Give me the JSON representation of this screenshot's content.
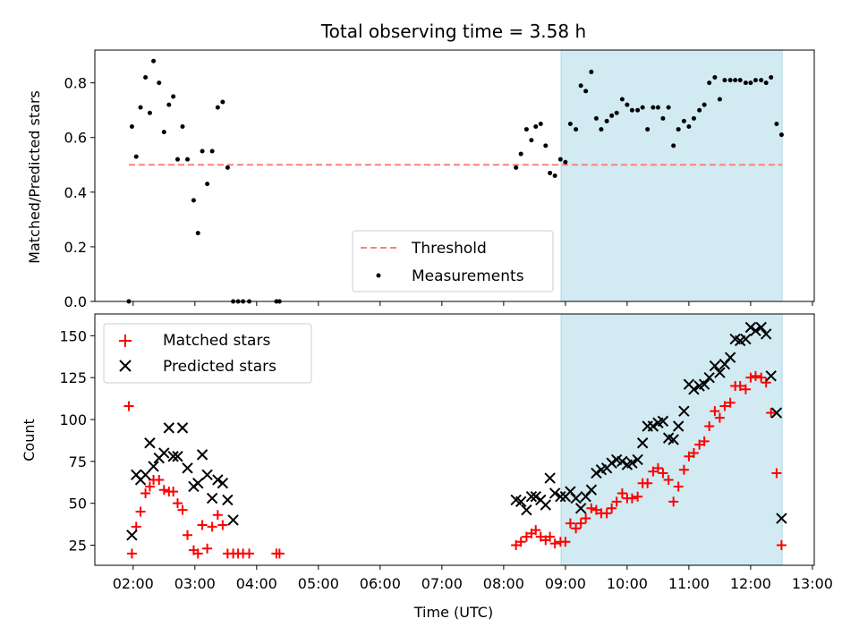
{
  "title": "Total observing time = 3.58 h",
  "colors": {
    "shade": "#add8e6",
    "threshold": "#ff7f7f",
    "matched": "#ff0000",
    "predicted": "#000000",
    "measurements": "#000000"
  },
  "chart_data": [
    {
      "type": "scatter",
      "ylabel": "Matched/Predicted stars",
      "xlim": [
        1.38,
        13.03
      ],
      "ylim": [
        0,
        0.92
      ],
      "yticks": [
        0.0,
        0.2,
        0.4,
        0.6,
        0.8
      ],
      "ytick_labels": [
        "0.0",
        "0.2",
        "0.4",
        "0.6",
        "0.8"
      ],
      "shaded_span": [
        8.93,
        12.51
      ],
      "threshold": {
        "name": "Threshold",
        "y": 0.5,
        "x_range": [
          1.93,
          12.51
        ]
      },
      "legend": {
        "position": "lower-center",
        "entries": [
          "Threshold",
          "Measurements"
        ]
      },
      "series": [
        {
          "name": "Measurements",
          "points": [
            [
              1.93,
              0.0
            ],
            [
              1.98,
              0.64
            ],
            [
              2.05,
              0.53
            ],
            [
              2.12,
              0.71
            ],
            [
              2.2,
              0.82
            ],
            [
              2.27,
              0.69
            ],
            [
              2.33,
              0.88
            ],
            [
              2.42,
              0.8
            ],
            [
              2.5,
              0.62
            ],
            [
              2.58,
              0.72
            ],
            [
              2.65,
              0.75
            ],
            [
              2.72,
              0.52
            ],
            [
              2.8,
              0.64
            ],
            [
              2.88,
              0.52
            ],
            [
              2.98,
              0.37
            ],
            [
              3.05,
              0.25
            ],
            [
              3.12,
              0.55
            ],
            [
              3.2,
              0.43
            ],
            [
              3.28,
              0.55
            ],
            [
              3.37,
              0.71
            ],
            [
              3.45,
              0.73
            ],
            [
              3.53,
              0.49
            ],
            [
              3.62,
              0.0
            ],
            [
              3.7,
              0.0
            ],
            [
              3.78,
              0.0
            ],
            [
              3.88,
              0.0
            ],
            [
              4.32,
              0.0
            ],
            [
              4.37,
              0.0
            ],
            [
              8.2,
              0.49
            ],
            [
              8.28,
              0.54
            ],
            [
              8.37,
              0.63
            ],
            [
              8.45,
              0.59
            ],
            [
              8.52,
              0.64
            ],
            [
              8.6,
              0.65
            ],
            [
              8.68,
              0.57
            ],
            [
              8.75,
              0.47
            ],
            [
              8.83,
              0.46
            ],
            [
              8.92,
              0.52
            ],
            [
              9.0,
              0.51
            ],
            [
              9.08,
              0.65
            ],
            [
              9.17,
              0.63
            ],
            [
              9.25,
              0.79
            ],
            [
              9.33,
              0.77
            ],
            [
              9.42,
              0.84
            ],
            [
              9.5,
              0.67
            ],
            [
              9.58,
              0.63
            ],
            [
              9.67,
              0.66
            ],
            [
              9.75,
              0.68
            ],
            [
              9.83,
              0.69
            ],
            [
              9.92,
              0.74
            ],
            [
              10.0,
              0.72
            ],
            [
              10.08,
              0.7
            ],
            [
              10.17,
              0.7
            ],
            [
              10.25,
              0.71
            ],
            [
              10.33,
              0.63
            ],
            [
              10.42,
              0.71
            ],
            [
              10.5,
              0.71
            ],
            [
              10.58,
              0.67
            ],
            [
              10.67,
              0.71
            ],
            [
              10.75,
              0.57
            ],
            [
              10.83,
              0.63
            ],
            [
              10.92,
              0.66
            ],
            [
              11.0,
              0.64
            ],
            [
              11.08,
              0.67
            ],
            [
              11.17,
              0.7
            ],
            [
              11.25,
              0.72
            ],
            [
              11.33,
              0.8
            ],
            [
              11.42,
              0.82
            ],
            [
              11.5,
              0.74
            ],
            [
              11.58,
              0.81
            ],
            [
              11.67,
              0.81
            ],
            [
              11.75,
              0.81
            ],
            [
              11.83,
              0.81
            ],
            [
              11.92,
              0.8
            ],
            [
              12.0,
              0.8
            ],
            [
              12.08,
              0.81
            ],
            [
              12.17,
              0.81
            ],
            [
              12.25,
              0.8
            ],
            [
              12.33,
              0.82
            ],
            [
              12.42,
              0.65
            ],
            [
              12.5,
              0.61
            ]
          ]
        }
      ]
    },
    {
      "type": "scatter",
      "xlabel": "Time (UTC)",
      "ylabel": "Count",
      "xlim": [
        1.38,
        13.03
      ],
      "ylim": [
        13,
        163
      ],
      "yticks": [
        25,
        50,
        75,
        100,
        125,
        150
      ],
      "ytick_labels": [
        "25",
        "50",
        "75",
        "100",
        "125",
        "150"
      ],
      "xticks": [
        2,
        3,
        4,
        5,
        6,
        7,
        8,
        9,
        10,
        11,
        12,
        13
      ],
      "xtick_labels": [
        "02:00",
        "03:00",
        "04:00",
        "05:00",
        "06:00",
        "07:00",
        "08:00",
        "09:00",
        "10:00",
        "11:00",
        "12:00",
        "13:00"
      ],
      "shaded_span": [
        8.93,
        12.51
      ],
      "legend": {
        "position": "upper-left",
        "entries": [
          "Matched stars",
          "Predicted stars"
        ]
      },
      "series": [
        {
          "name": "Matched stars",
          "marker": "plus",
          "points": [
            [
              1.93,
              108
            ],
            [
              1.98,
              20
            ],
            [
              2.05,
              36
            ],
            [
              2.12,
              45
            ],
            [
              2.2,
              56
            ],
            [
              2.27,
              60
            ],
            [
              2.33,
              64
            ],
            [
              2.42,
              64
            ],
            [
              2.5,
              58
            ],
            [
              2.58,
              57
            ],
            [
              2.65,
              57
            ],
            [
              2.72,
              50
            ],
            [
              2.8,
              46
            ],
            [
              2.88,
              31
            ],
            [
              2.98,
              22
            ],
            [
              3.05,
              20
            ],
            [
              3.12,
              37
            ],
            [
              3.2,
              23
            ],
            [
              3.28,
              36
            ],
            [
              3.37,
              43
            ],
            [
              3.45,
              37
            ],
            [
              3.53,
              20
            ],
            [
              3.62,
              20
            ],
            [
              3.7,
              20
            ],
            [
              3.78,
              20
            ],
            [
              3.88,
              20
            ],
            [
              4.32,
              20
            ],
            [
              4.37,
              20
            ],
            [
              8.2,
              25
            ],
            [
              8.28,
              27
            ],
            [
              8.37,
              30
            ],
            [
              8.45,
              32
            ],
            [
              8.52,
              34
            ],
            [
              8.6,
              30
            ],
            [
              8.68,
              28
            ],
            [
              8.75,
              30
            ],
            [
              8.83,
              26
            ],
            [
              8.92,
              27
            ],
            [
              9.0,
              27
            ],
            [
              9.08,
              38
            ],
            [
              9.17,
              35
            ],
            [
              9.25,
              38
            ],
            [
              9.33,
              41
            ],
            [
              9.42,
              47
            ],
            [
              9.5,
              46
            ],
            [
              9.58,
              44
            ],
            [
              9.67,
              44
            ],
            [
              9.75,
              47
            ],
            [
              9.83,
              51
            ],
            [
              9.92,
              56
            ],
            [
              10.0,
              53
            ],
            [
              10.08,
              53
            ],
            [
              10.17,
              54
            ],
            [
              10.25,
              62
            ],
            [
              10.33,
              62
            ],
            [
              10.42,
              69
            ],
            [
              10.5,
              71
            ],
            [
              10.58,
              68
            ],
            [
              10.67,
              64
            ],
            [
              10.75,
              51
            ],
            [
              10.83,
              60
            ],
            [
              10.92,
              70
            ],
            [
              11.0,
              78
            ],
            [
              11.08,
              80
            ],
            [
              11.17,
              85
            ],
            [
              11.25,
              87
            ],
            [
              11.33,
              96
            ],
            [
              11.42,
              105
            ],
            [
              11.5,
              101
            ],
            [
              11.58,
              108
            ],
            [
              11.67,
              110
            ],
            [
              11.75,
              120
            ],
            [
              11.83,
              120
            ],
            [
              11.92,
              118
            ],
            [
              12.0,
              125
            ],
            [
              12.08,
              126
            ],
            [
              12.17,
              125
            ],
            [
              12.25,
              122
            ],
            [
              12.33,
              104
            ],
            [
              12.42,
              68
            ],
            [
              12.5,
              25
            ]
          ]
        },
        {
          "name": "Predicted stars",
          "marker": "x",
          "points": [
            [
              1.98,
              31
            ],
            [
              2.05,
              67
            ],
            [
              2.12,
              64
            ],
            [
              2.2,
              67
            ],
            [
              2.27,
              86
            ],
            [
              2.33,
              72
            ],
            [
              2.42,
              77
            ],
            [
              2.5,
              80
            ],
            [
              2.58,
              95
            ],
            [
              2.65,
              78
            ],
            [
              2.72,
              78
            ],
            [
              2.8,
              95
            ],
            [
              2.88,
              71
            ],
            [
              2.98,
              60
            ],
            [
              3.05,
              62
            ],
            [
              3.12,
              79
            ],
            [
              3.2,
              67
            ],
            [
              3.28,
              53
            ],
            [
              3.37,
              64
            ],
            [
              3.45,
              62
            ],
            [
              3.53,
              52
            ],
            [
              3.62,
              40
            ],
            [
              8.2,
              52
            ],
            [
              8.28,
              51
            ],
            [
              8.37,
              46
            ],
            [
              8.45,
              54
            ],
            [
              8.52,
              54
            ],
            [
              8.6,
              52
            ],
            [
              8.68,
              49
            ],
            [
              8.75,
              65
            ],
            [
              8.83,
              56
            ],
            [
              8.92,
              54
            ],
            [
              9.0,
              54
            ],
            [
              9.08,
              57
            ],
            [
              9.17,
              53
            ],
            [
              9.25,
              47
            ],
            [
              9.33,
              54
            ],
            [
              9.42,
              58
            ],
            [
              9.5,
              68
            ],
            [
              9.58,
              70
            ],
            [
              9.67,
              71
            ],
            [
              9.75,
              74
            ],
            [
              9.83,
              76
            ],
            [
              9.92,
              75
            ],
            [
              10.0,
              73
            ],
            [
              10.08,
              74
            ],
            [
              10.17,
              76
            ],
            [
              10.25,
              86
            ],
            [
              10.33,
              96
            ],
            [
              10.42,
              96
            ],
            [
              10.5,
              98
            ],
            [
              10.58,
              99
            ],
            [
              10.67,
              89
            ],
            [
              10.75,
              88
            ],
            [
              10.83,
              96
            ],
            [
              10.92,
              105
            ],
            [
              11.0,
              121
            ],
            [
              11.08,
              118
            ],
            [
              11.17,
              120
            ],
            [
              11.25,
              121
            ],
            [
              11.33,
              125
            ],
            [
              11.42,
              132
            ],
            [
              11.5,
              128
            ],
            [
              11.58,
              133
            ],
            [
              11.67,
              137
            ],
            [
              11.75,
              148
            ],
            [
              11.83,
              147
            ],
            [
              11.92,
              148
            ],
            [
              12.0,
              155
            ],
            [
              12.08,
              153
            ],
            [
              12.17,
              155
            ],
            [
              12.25,
              151
            ],
            [
              12.33,
              126
            ],
            [
              12.42,
              104
            ],
            [
              12.5,
              41
            ]
          ]
        }
      ]
    }
  ]
}
